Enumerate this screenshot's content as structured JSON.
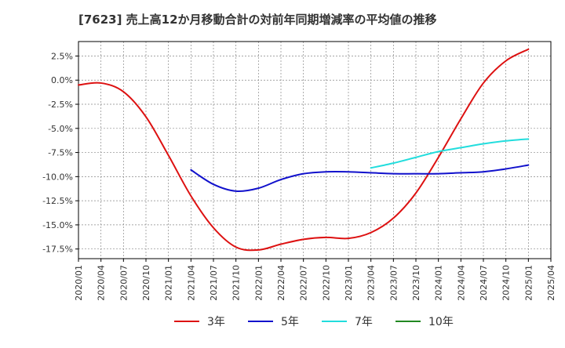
{
  "chart_data": {
    "type": "line",
    "title": "[7623]  売上高12か月移動合計の対前年同期増減率の平均値の推移",
    "xlabel": "",
    "ylabel": "",
    "ylim": [
      -18.5,
      4.0
    ],
    "yticks": [
      2.5,
      0.0,
      -2.5,
      -5.0,
      -7.5,
      -10.0,
      -12.5,
      -15.0,
      -17.5
    ],
    "ytick_labels": [
      "2.5%",
      "0.0%",
      "-2.5%",
      "-5.0%",
      "-7.5%",
      "-10.0%",
      "-12.5%",
      "-15.0%",
      "-17.5%"
    ],
    "x_tick_labels": [
      "2020/01",
      "2020/04",
      "2020/07",
      "2020/10",
      "2021/01",
      "2021/04",
      "2021/07",
      "2021/10",
      "2022/01",
      "2022/04",
      "2022/07",
      "2022/10",
      "2023/01",
      "2023/04",
      "2023/07",
      "2023/10",
      "2024/01",
      "2024/04",
      "2024/07",
      "2024/10",
      "2025/01",
      "2025/04"
    ],
    "grid": true,
    "legend_position": "bottom",
    "series": [
      {
        "name": "3年",
        "color": "#dd1111",
        "points": [
          {
            "x": "2020/01",
            "y": -0.5
          },
          {
            "x": "2020/04",
            "y": -0.3
          },
          {
            "x": "2020/07",
            "y": -1.2
          },
          {
            "x": "2020/10",
            "y": -3.8
          },
          {
            "x": "2021/01",
            "y": -7.8
          },
          {
            "x": "2021/04",
            "y": -12.0
          },
          {
            "x": "2021/07",
            "y": -15.3
          },
          {
            "x": "2021/10",
            "y": -17.3
          },
          {
            "x": "2022/01",
            "y": -17.6
          },
          {
            "x": "2022/04",
            "y": -17.0
          },
          {
            "x": "2022/07",
            "y": -16.5
          },
          {
            "x": "2022/10",
            "y": -16.3
          },
          {
            "x": "2023/01",
            "y": -16.4
          },
          {
            "x": "2023/04",
            "y": -15.8
          },
          {
            "x": "2023/07",
            "y": -14.3
          },
          {
            "x": "2023/10",
            "y": -11.7
          },
          {
            "x": "2024/01",
            "y": -8.0
          },
          {
            "x": "2024/04",
            "y": -4.0
          },
          {
            "x": "2024/07",
            "y": -0.3
          },
          {
            "x": "2024/10",
            "y": 2.0
          },
          {
            "x": "2025/01",
            "y": 3.2
          }
        ]
      },
      {
        "name": "5年",
        "color": "#1111cc",
        "points": [
          {
            "x": "2021/04",
            "y": -9.3
          },
          {
            "x": "2021/07",
            "y": -10.8
          },
          {
            "x": "2021/10",
            "y": -11.5
          },
          {
            "x": "2022/01",
            "y": -11.2
          },
          {
            "x": "2022/04",
            "y": -10.3
          },
          {
            "x": "2022/07",
            "y": -9.7
          },
          {
            "x": "2022/10",
            "y": -9.5
          },
          {
            "x": "2023/01",
            "y": -9.5
          },
          {
            "x": "2023/04",
            "y": -9.6
          },
          {
            "x": "2023/07",
            "y": -9.7
          },
          {
            "x": "2023/10",
            "y": -9.7
          },
          {
            "x": "2024/01",
            "y": -9.7
          },
          {
            "x": "2024/04",
            "y": -9.6
          },
          {
            "x": "2024/07",
            "y": -9.5
          },
          {
            "x": "2024/10",
            "y": -9.2
          },
          {
            "x": "2025/01",
            "y": -8.8
          }
        ]
      },
      {
        "name": "7年",
        "color": "#22dddd",
        "points": [
          {
            "x": "2023/04",
            "y": -9.1
          },
          {
            "x": "2023/07",
            "y": -8.6
          },
          {
            "x": "2023/10",
            "y": -8.0
          },
          {
            "x": "2024/01",
            "y": -7.4
          },
          {
            "x": "2024/04",
            "y": -7.0
          },
          {
            "x": "2024/07",
            "y": -6.6
          },
          {
            "x": "2024/10",
            "y": -6.3
          },
          {
            "x": "2025/01",
            "y": -6.1
          }
        ]
      },
      {
        "name": "10年",
        "color": "#228822",
        "points": []
      }
    ]
  }
}
